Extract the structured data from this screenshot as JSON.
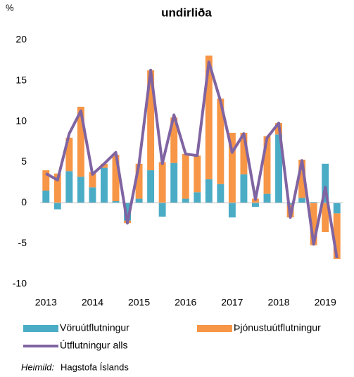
{
  "chart_data": {
    "type": "stacked_bar_line",
    "title": "undirliða",
    "y_unit": "%",
    "categories": [
      "2013",
      null,
      null,
      null,
      "2014",
      null,
      null,
      null,
      "2015",
      null,
      null,
      null,
      "2016",
      null,
      null,
      null,
      "2017",
      null,
      null,
      null,
      "2018",
      null,
      null,
      null,
      "2019",
      null
    ],
    "series": [
      {
        "name": "Vöruútflutningur",
        "color": "#4bacc6",
        "kind": "bar",
        "values": [
          1.5,
          -0.8,
          3.9,
          3.2,
          1.9,
          4.3,
          0.2,
          -2.2,
          0.5,
          4.0,
          -1.7,
          4.9,
          0.5,
          1.3,
          2.9,
          2.3,
          -1.8,
          3.5,
          -0.5,
          1.1,
          8.4,
          -0.2,
          0.6,
          0.1,
          4.8,
          -1.3
        ]
      },
      {
        "name": "Þjónustuútflutningur",
        "color": "#f79646",
        "kind": "bar",
        "values": [
          2.5,
          3.6,
          4.1,
          8.6,
          1.9,
          0.5,
          5.7,
          -0.3,
          4.3,
          12.3,
          5.0,
          5.6,
          5.5,
          4.5,
          15.2,
          10.5,
          8.6,
          5.1,
          0.5,
          7.1,
          1.4,
          -1.6,
          4.7,
          -5.2,
          -3.6,
          -5.6
        ]
      },
      {
        "name": "Útflutningur alls",
        "color": "#8064a2",
        "kind": "line",
        "values": [
          3.6,
          2.8,
          8.5,
          11.3,
          3.5,
          4.8,
          6.2,
          -2.5,
          4.8,
          16.3,
          4.8,
          10.8,
          6.0,
          5.8,
          17.3,
          12.5,
          6.2,
          8.5,
          0.4,
          8.0,
          9.8,
          -1.8,
          5.2,
          -5.1,
          1.9,
          -6.8
        ]
      }
    ],
    "ylim": [
      -10,
      20
    ],
    "yticks": [
      -10,
      -5,
      0,
      5,
      10,
      15,
      20
    ],
    "grid": false,
    "source_label": "Heimild:",
    "source": "Hagstofa Íslands"
  }
}
